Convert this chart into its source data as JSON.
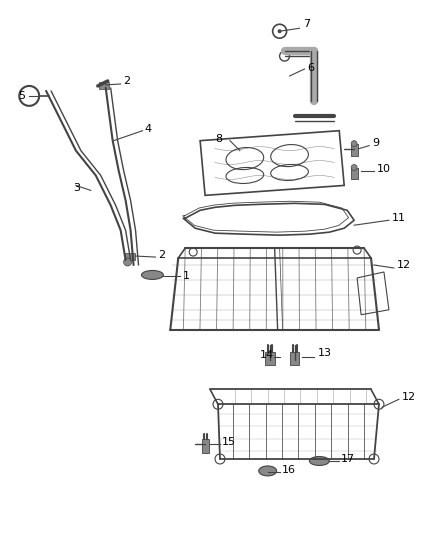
{
  "background_color": "#ffffff",
  "figsize": [
    4.38,
    5.33
  ],
  "dpi": 100,
  "label_fontsize": 8,
  "line_color": "#444444",
  "text_color": "#000000",
  "gray": "#888888",
  "dark_gray": "#555555"
}
